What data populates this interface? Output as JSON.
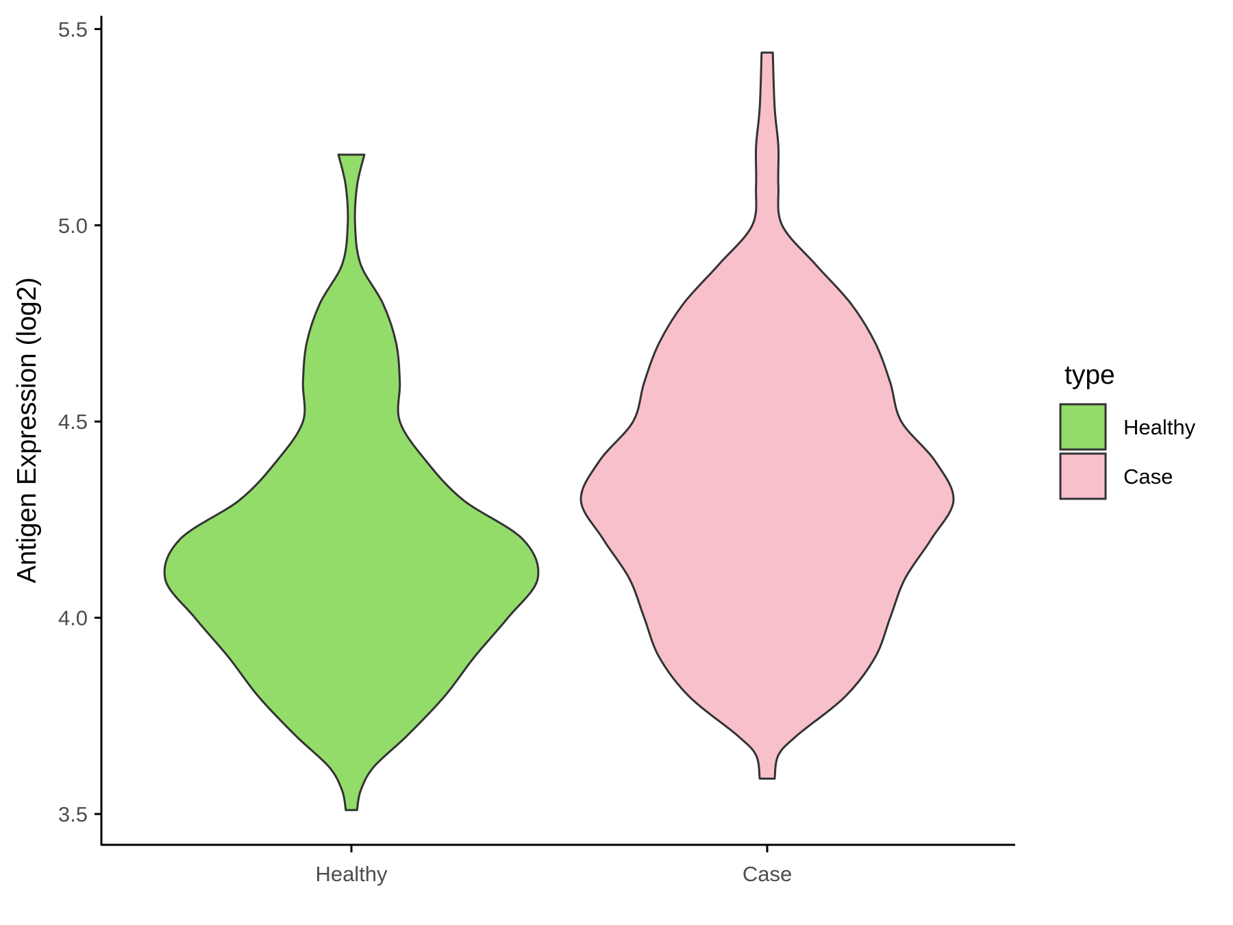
{
  "chart_data": {
    "type": "violin",
    "ylabel": "Antigen Expression (log2)",
    "xlabel": "",
    "ylim": [
      3.42,
      5.6
    ],
    "yticks": [
      "3.5",
      "4.0",
      "4.5",
      "5.0",
      "5.5"
    ],
    "categories": [
      "Healthy",
      "Case"
    ],
    "grid": false,
    "legend": {
      "title": "type",
      "position": "right",
      "entries": [
        "Healthy",
        "Case"
      ]
    },
    "series": [
      {
        "name": "Healthy",
        "color": "#93dc6a",
        "min": 3.51,
        "max": 5.18,
        "density_profile": [
          [
            3.51,
            0.03
          ],
          [
            3.56,
            0.05
          ],
          [
            3.62,
            0.12
          ],
          [
            3.7,
            0.3
          ],
          [
            3.8,
            0.5
          ],
          [
            3.9,
            0.66
          ],
          [
            4.0,
            0.84
          ],
          [
            4.1,
            1.0
          ],
          [
            4.2,
            0.92
          ],
          [
            4.3,
            0.6
          ],
          [
            4.4,
            0.4
          ],
          [
            4.5,
            0.26
          ],
          [
            4.6,
            0.26
          ],
          [
            4.7,
            0.24
          ],
          [
            4.8,
            0.17
          ],
          [
            4.9,
            0.05
          ],
          [
            5.0,
            0.02
          ],
          [
            5.1,
            0.03
          ],
          [
            5.18,
            0.07
          ]
        ]
      },
      {
        "name": "Case",
        "color": "#f8c0cb",
        "min": 3.59,
        "max": 5.44,
        "density_profile": [
          [
            3.59,
            0.04
          ],
          [
            3.65,
            0.06
          ],
          [
            3.7,
            0.16
          ],
          [
            3.8,
            0.42
          ],
          [
            3.9,
            0.58
          ],
          [
            4.0,
            0.66
          ],
          [
            4.1,
            0.74
          ],
          [
            4.2,
            0.88
          ],
          [
            4.3,
            1.0
          ],
          [
            4.4,
            0.9
          ],
          [
            4.5,
            0.72
          ],
          [
            4.6,
            0.66
          ],
          [
            4.7,
            0.58
          ],
          [
            4.8,
            0.45
          ],
          [
            4.9,
            0.26
          ],
          [
            5.0,
            0.08
          ],
          [
            5.1,
            0.06
          ],
          [
            5.2,
            0.06
          ],
          [
            5.3,
            0.04
          ],
          [
            5.44,
            0.03
          ]
        ]
      }
    ]
  }
}
